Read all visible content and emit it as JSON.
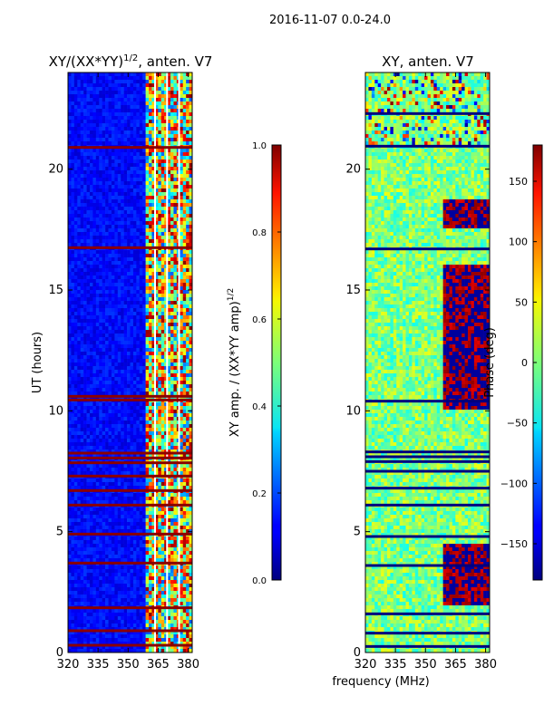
{
  "suptitle": "2016-11-07 0.0-24.0",
  "shared_xlabel": "frequency (MHz)",
  "chart_data": [
    {
      "type": "heatmap",
      "title_main": "XY/(XX*YY)",
      "title_sup": "1/2",
      "title_rest": ", anten. V7",
      "ylabel": "UT (hours)",
      "xlim": [
        320,
        382
      ],
      "ylim": [
        0,
        24
      ],
      "xticks": [
        320,
        335,
        350,
        365,
        380
      ],
      "yticks": [
        0,
        5,
        10,
        15,
        20
      ],
      "description_values": "low amplitude (~0.05-0.15) at 320-358 MHz with frequent full-band red (1.0) flag rows; high mixed values (0.3-1.0) at 359-382 MHz",
      "bright_band_start_mhz": 359,
      "gap_columns_mhz": [
        363,
        369,
        375
      ],
      "flag_rows_hours": [
        0.3,
        0.9,
        1.85,
        3.7,
        4.9,
        6.1,
        6.7,
        7.3,
        7.85,
        8.05,
        8.25,
        10.45,
        10.6,
        16.75,
        20.9
      ]
    },
    {
      "type": "colorbar",
      "label_main": "XY amp. / (XX*YY amp)",
      "label_sup": "1/2",
      "range": [
        0.0,
        1.0
      ],
      "ticks": [
        "0.0",
        "0.2",
        "0.4",
        "0.6",
        "0.8",
        "1.0"
      ],
      "colormap": "jet"
    },
    {
      "type": "heatmap",
      "title": "XY, anten. V7",
      "xlim": [
        320,
        382
      ],
      "ylim": [
        0,
        24
      ],
      "xticks": [
        320,
        335,
        350,
        365,
        380
      ],
      "yticks": [
        0,
        5,
        10,
        15,
        20
      ],
      "description_values": "phase in degrees; mostly near 0 (green) with noise, strong -180/+180 regions at 358-382 MHz between 10-16 h and 2-4 h",
      "dark_rows_hours": [
        0.25,
        0.8,
        1.6,
        3.6,
        4.8,
        6.1,
        6.8,
        7.5,
        7.9,
        8.1,
        8.3,
        10.4,
        16.7,
        20.95,
        22.3
      ]
    },
    {
      "type": "colorbar",
      "label": "Phase (deg)",
      "range": [
        -180,
        180
      ],
      "ticks": [
        "150",
        "100",
        "50",
        "0",
        "−50",
        "−100",
        "−150"
      ],
      "tick_values": [
        150,
        100,
        50,
        0,
        -50,
        -100,
        -150
      ],
      "colormap": "jet"
    }
  ]
}
